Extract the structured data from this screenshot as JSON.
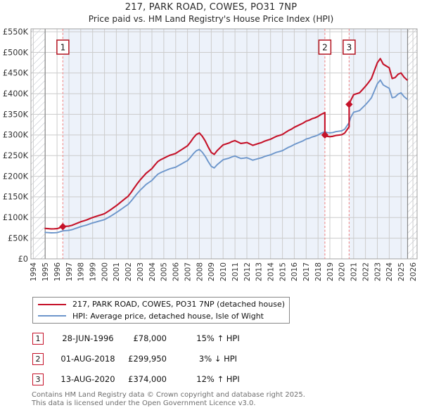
{
  "header": {
    "title": "217, PARK ROAD, COWES, PO31 7NP",
    "subtitle": "Price paid vs. HM Land Registry's House Price Index (HPI)"
  },
  "legend": {
    "items": [
      {
        "label": "217, PARK ROAD, COWES, PO31 7NP (detached house)",
        "color": "#c51229",
        "thickness": 2.5
      },
      {
        "label": "HPI: Average price, detached house, Isle of Wight",
        "color": "#6d96cb",
        "thickness": 2.2
      }
    ]
  },
  "transactions": [
    {
      "num": "1",
      "date": "28-JUN-1996",
      "price": "£78,000",
      "hpi": "15% ↑ HPI"
    },
    {
      "num": "2",
      "date": "01-AUG-2018",
      "price": "£299,950",
      "hpi": "3% ↓ HPI"
    },
    {
      "num": "3",
      "date": "13-AUG-2020",
      "price": "£374,000",
      "hpi": "12% ↑ HPI"
    }
  ],
  "footer": {
    "line1": "Contains HM Land Registry data © Crown copyright and database right 2025.",
    "line2": "This data is licensed under the Open Government Licence v3.0."
  },
  "chart_data": {
    "type": "line",
    "title": "217, PARK ROAD, COWES, PO31 7NP",
    "subtitle": "Price paid vs. HM Land Registry's House Price Index (HPI)",
    "xlabel": "",
    "ylabel": "",
    "grid": true,
    "legend_position": "below",
    "x_range": [
      1993.8,
      2026.35
    ],
    "y_range_k": [
      0,
      557
    ],
    "data_span": [
      1995.0,
      2025.55
    ],
    "x_ticks": [
      1994,
      1995,
      1996,
      1997,
      1998,
      1999,
      2000,
      2001,
      2002,
      2003,
      2004,
      2005,
      2006,
      2007,
      2008,
      2009,
      2010,
      2011,
      2012,
      2013,
      2014,
      2015,
      2016,
      2017,
      2018,
      2019,
      2020,
      2021,
      2022,
      2023,
      2024,
      2025,
      2026
    ],
    "y_ticks_k": [
      {
        "v": 0,
        "label": "£0"
      },
      {
        "v": 50,
        "label": "£50K"
      },
      {
        "v": 100,
        "label": "£100K"
      },
      {
        "v": 150,
        "label": "£150K"
      },
      {
        "v": 200,
        "label": "£200K"
      },
      {
        "v": 250,
        "label": "£250K"
      },
      {
        "v": 300,
        "label": "£300K"
      },
      {
        "v": 350,
        "label": "£350K"
      },
      {
        "v": 400,
        "label": "£400K"
      },
      {
        "v": 450,
        "label": "£450K"
      },
      {
        "v": 500,
        "label": "£500K"
      },
      {
        "v": 550,
        "label": "£550K"
      }
    ],
    "bands": [
      {
        "x0": 1993.8,
        "x1": 1995.0,
        "style": "hatch"
      },
      {
        "x0": 1995.0,
        "x1": 1996.49,
        "style": "plain"
      },
      {
        "x0": 1996.49,
        "x1": 2018.58,
        "style": "shade"
      },
      {
        "x0": 2018.58,
        "x1": 2020.62,
        "style": "plain"
      },
      {
        "x0": 2020.62,
        "x1": 2025.55,
        "style": "shade"
      },
      {
        "x0": 2025.55,
        "x1": 2026.35,
        "style": "hatch"
      }
    ],
    "shade_color": "#edf2fa",
    "grid_color": "#cccccc",
    "sale_line_color": "#ef8f8f",
    "sales": [
      {
        "label": "1",
        "x": 1996.49,
        "y_k": 78,
        "date": "28-JUN-1996",
        "price_gbp": 78000,
        "vs_hpi": "15% above HPI"
      },
      {
        "label": "2",
        "x": 2018.58,
        "y_k": 299.95,
        "date": "01-AUG-2018",
        "price_gbp": 299950,
        "vs_hpi": "3% below HPI"
      },
      {
        "label": "3",
        "x": 2020.62,
        "y_k": 374,
        "date": "13-AUG-2020",
        "price_gbp": 374000,
        "vs_hpi": "12% above HPI"
      }
    ],
    "series": [
      {
        "name": "217, PARK ROAD, COWES, PO31 7NP (detached house)",
        "color": "#c51229",
        "width": 2.1,
        "points_k": [
          [
            1995.0,
            73.6
          ],
          [
            1995.25,
            73
          ],
          [
            1995.5,
            72.5
          ],
          [
            1995.75,
            72.7
          ],
          [
            1996.0,
            73
          ],
          [
            1996.25,
            75.3
          ],
          [
            1996.49,
            78
          ],
          [
            1996.75,
            78.8
          ],
          [
            1997.0,
            79.4
          ],
          [
            1997.25,
            81.1
          ],
          [
            1997.5,
            84
          ],
          [
            1997.75,
            86.8
          ],
          [
            1998.0,
            89.7
          ],
          [
            1998.25,
            92
          ],
          [
            1998.5,
            94.3
          ],
          [
            1998.75,
            97.2
          ],
          [
            1999.0,
            100.1
          ],
          [
            1999.25,
            102.4
          ],
          [
            1999.5,
            104.7
          ],
          [
            1999.75,
            107
          ],
          [
            2000.0,
            109.3
          ],
          [
            2000.25,
            113.9
          ],
          [
            2000.5,
            118.5
          ],
          [
            2000.75,
            123.6
          ],
          [
            2001.0,
            128.8
          ],
          [
            2001.25,
            134.6
          ],
          [
            2001.5,
            140.3
          ],
          [
            2001.75,
            146.1
          ],
          [
            2002.0,
            151.8
          ],
          [
            2002.25,
            161
          ],
          [
            2002.5,
            171.4
          ],
          [
            2002.75,
            181.7
          ],
          [
            2003.0,
            190.9
          ],
          [
            2003.25,
            199
          ],
          [
            2003.5,
            207
          ],
          [
            2003.75,
            212.8
          ],
          [
            2004.0,
            218.5
          ],
          [
            2004.25,
            227.7
          ],
          [
            2004.5,
            235.8
          ],
          [
            2004.75,
            240.4
          ],
          [
            2005.0,
            243.8
          ],
          [
            2005.25,
            247.3
          ],
          [
            2005.5,
            250.7
          ],
          [
            2005.75,
            253
          ],
          [
            2006.0,
            255.3
          ],
          [
            2006.25,
            259.9
          ],
          [
            2006.5,
            264.5
          ],
          [
            2006.75,
            269.1
          ],
          [
            2007.0,
            273.7
          ],
          [
            2007.25,
            282.9
          ],
          [
            2007.5,
            293.3
          ],
          [
            2007.75,
            301.3
          ],
          [
            2008.0,
            304.8
          ],
          [
            2008.25,
            296.7
          ],
          [
            2008.5,
            285.2
          ],
          [
            2008.75,
            270.3
          ],
          [
            2009.0,
            257.6
          ],
          [
            2009.25,
            253
          ],
          [
            2009.5,
            262.2
          ],
          [
            2009.75,
            269.1
          ],
          [
            2010.0,
            276
          ],
          [
            2010.25,
            278.3
          ],
          [
            2010.5,
            280.6
          ],
          [
            2010.75,
            284.1
          ],
          [
            2011.0,
            286.4
          ],
          [
            2011.25,
            282.9
          ],
          [
            2011.5,
            279.5
          ],
          [
            2011.75,
            280.6
          ],
          [
            2012.0,
            281.8
          ],
          [
            2012.25,
            278.3
          ],
          [
            2012.5,
            274.9
          ],
          [
            2012.75,
            277.2
          ],
          [
            2013.0,
            279.5
          ],
          [
            2013.25,
            281.8
          ],
          [
            2013.5,
            285.2
          ],
          [
            2013.75,
            287.5
          ],
          [
            2014.0,
            289.8
          ],
          [
            2014.25,
            293.3
          ],
          [
            2014.5,
            296.7
          ],
          [
            2014.75,
            299
          ],
          [
            2015.0,
            301.3
          ],
          [
            2015.25,
            305.9
          ],
          [
            2015.5,
            310.5
          ],
          [
            2015.75,
            314
          ],
          [
            2016.0,
            318.6
          ],
          [
            2016.25,
            322
          ],
          [
            2016.5,
            325.5
          ],
          [
            2016.75,
            328.9
          ],
          [
            2017.0,
            333.5
          ],
          [
            2017.25,
            335.8
          ],
          [
            2017.5,
            339.3
          ],
          [
            2017.75,
            341.6
          ],
          [
            2018.0,
            345
          ],
          [
            2018.25,
            349.6
          ],
          [
            2018.58,
            354.2
          ],
          [
            2018.58,
            299.95
          ],
          [
            2018.75,
            296.8
          ],
          [
            2019.0,
            295.9
          ],
          [
            2019.25,
            296.8
          ],
          [
            2019.5,
            298.8
          ],
          [
            2019.75,
            299.7
          ],
          [
            2020.0,
            300.7
          ],
          [
            2020.25,
            304.6
          ],
          [
            2020.62,
            320.1
          ],
          [
            2020.62,
            374
          ],
          [
            2020.75,
            383
          ],
          [
            2021.0,
            397.6
          ],
          [
            2021.25,
            399.8
          ],
          [
            2021.5,
            402.1
          ],
          [
            2021.75,
            409.9
          ],
          [
            2022.0,
            417.8
          ],
          [
            2022.25,
            426.7
          ],
          [
            2022.5,
            436.8
          ],
          [
            2022.75,
            455.8
          ],
          [
            2023.0,
            474.9
          ],
          [
            2023.25,
            485
          ],
          [
            2023.5,
            471.5
          ],
          [
            2023.75,
            467
          ],
          [
            2024.0,
            462.6
          ],
          [
            2024.25,
            436.8
          ],
          [
            2024.5,
            439
          ],
          [
            2024.75,
            446.9
          ],
          [
            2025.0,
            450.2
          ],
          [
            2025.25,
            440.2
          ],
          [
            2025.5,
            433.4
          ]
        ]
      },
      {
        "name": "HPI: Average price, detached house, Isle of Wight",
        "color": "#6d96cb",
        "width": 1.9,
        "points_k": [
          [
            1995.0,
            64
          ],
          [
            1995.25,
            63.5
          ],
          [
            1995.5,
            63
          ],
          [
            1995.75,
            63.2
          ],
          [
            1996.0,
            63.5
          ],
          [
            1996.25,
            65.5
          ],
          [
            1996.49,
            67.8
          ],
          [
            1996.75,
            68.5
          ],
          [
            1997.0,
            69
          ],
          [
            1997.25,
            70.5
          ],
          [
            1997.5,
            73
          ],
          [
            1997.75,
            75.5
          ],
          [
            1998.0,
            78
          ],
          [
            1998.25,
            80
          ],
          [
            1998.5,
            82
          ],
          [
            1998.75,
            84.5
          ],
          [
            1999.0,
            87
          ],
          [
            1999.25,
            89
          ],
          [
            1999.5,
            91
          ],
          [
            1999.75,
            93
          ],
          [
            2000.0,
            95
          ],
          [
            2000.25,
            99
          ],
          [
            2000.5,
            103
          ],
          [
            2000.75,
            107.5
          ],
          [
            2001.0,
            112
          ],
          [
            2001.25,
            117
          ],
          [
            2001.5,
            122
          ],
          [
            2001.75,
            127
          ],
          [
            2002.0,
            132
          ],
          [
            2002.25,
            140
          ],
          [
            2002.5,
            149
          ],
          [
            2002.75,
            158
          ],
          [
            2003.0,
            166
          ],
          [
            2003.25,
            173
          ],
          [
            2003.5,
            180
          ],
          [
            2003.75,
            185
          ],
          [
            2004.0,
            190
          ],
          [
            2004.25,
            198
          ],
          [
            2004.5,
            205
          ],
          [
            2004.75,
            209
          ],
          [
            2005.0,
            212
          ],
          [
            2005.25,
            215
          ],
          [
            2005.5,
            218
          ],
          [
            2005.75,
            220
          ],
          [
            2006.0,
            222
          ],
          [
            2006.25,
            226
          ],
          [
            2006.5,
            230
          ],
          [
            2006.75,
            234
          ],
          [
            2007.0,
            238
          ],
          [
            2007.25,
            246
          ],
          [
            2007.5,
            255
          ],
          [
            2007.75,
            262
          ],
          [
            2008.0,
            265
          ],
          [
            2008.25,
            258
          ],
          [
            2008.5,
            248
          ],
          [
            2008.75,
            235
          ],
          [
            2009.0,
            224
          ],
          [
            2009.25,
            220
          ],
          [
            2009.5,
            228
          ],
          [
            2009.75,
            234
          ],
          [
            2010.0,
            240
          ],
          [
            2010.25,
            242
          ],
          [
            2010.5,
            244
          ],
          [
            2010.75,
            247
          ],
          [
            2011.0,
            249
          ],
          [
            2011.25,
            246
          ],
          [
            2011.5,
            243
          ],
          [
            2011.75,
            244
          ],
          [
            2012.0,
            245
          ],
          [
            2012.25,
            242
          ],
          [
            2012.5,
            239
          ],
          [
            2012.75,
            241
          ],
          [
            2013.0,
            243
          ],
          [
            2013.25,
            245
          ],
          [
            2013.5,
            248
          ],
          [
            2013.75,
            250
          ],
          [
            2014.0,
            252
          ],
          [
            2014.25,
            255
          ],
          [
            2014.5,
            258
          ],
          [
            2014.75,
            260
          ],
          [
            2015.0,
            262
          ],
          [
            2015.25,
            266
          ],
          [
            2015.5,
            270
          ],
          [
            2015.75,
            273
          ],
          [
            2016.0,
            277
          ],
          [
            2016.25,
            280
          ],
          [
            2016.5,
            283
          ],
          [
            2016.75,
            286
          ],
          [
            2017.0,
            290
          ],
          [
            2017.25,
            292
          ],
          [
            2017.5,
            295
          ],
          [
            2017.75,
            297
          ],
          [
            2018.0,
            300
          ],
          [
            2018.25,
            304
          ],
          [
            2018.58,
            308
          ],
          [
            2018.75,
            306
          ],
          [
            2019.0,
            305
          ],
          [
            2019.25,
            306
          ],
          [
            2019.5,
            308
          ],
          [
            2019.75,
            309
          ],
          [
            2020.0,
            310
          ],
          [
            2020.25,
            314
          ],
          [
            2020.62,
            330
          ],
          [
            2020.75,
            342
          ],
          [
            2021.0,
            355
          ],
          [
            2021.25,
            357
          ],
          [
            2021.5,
            359
          ],
          [
            2021.75,
            366
          ],
          [
            2022.0,
            373
          ],
          [
            2022.25,
            381
          ],
          [
            2022.5,
            390
          ],
          [
            2022.75,
            407
          ],
          [
            2023.0,
            424
          ],
          [
            2023.25,
            433
          ],
          [
            2023.5,
            421
          ],
          [
            2023.75,
            417
          ],
          [
            2024.0,
            413
          ],
          [
            2024.25,
            390
          ],
          [
            2024.5,
            392
          ],
          [
            2024.75,
            399
          ],
          [
            2025.0,
            402
          ],
          [
            2025.25,
            393
          ],
          [
            2025.5,
            387
          ]
        ]
      }
    ]
  }
}
